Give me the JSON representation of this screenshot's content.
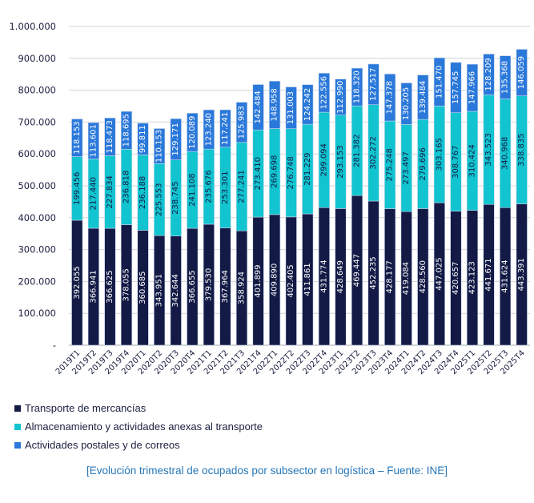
{
  "chart_data": {
    "type": "bar",
    "stacked": true,
    "title": "",
    "xlabel": "",
    "ylabel": "",
    "ylim": [
      0,
      1000000
    ],
    "yticks": [
      0,
      100000,
      200000,
      300000,
      400000,
      500000,
      600000,
      700000,
      800000,
      900000,
      1000000
    ],
    "ytick_labels": [
      "-",
      "100.000",
      "200.000",
      "300.000",
      "400.000",
      "500.000",
      "600.000",
      "700.000",
      "800.000",
      "900.000",
      "1.000.000"
    ],
    "grid": true,
    "legend_position": "bottom-left",
    "categories": [
      "2019T1",
      "2019T2",
      "2019T3",
      "2019T4",
      "2020T1",
      "2020T2",
      "2020T3",
      "2020T4",
      "2021T1",
      "2021T2",
      "2021T3",
      "2021T4",
      "2022T1",
      "2022T2",
      "2022T3",
      "2022T4",
      "2023T1",
      "2023T2",
      "2023T3",
      "2023T4",
      "2024T1",
      "2024T2",
      "2024T3",
      "2024T4",
      "2025T1",
      "2025T2",
      "2025T3",
      "2025T4"
    ],
    "series": [
      {
        "name": "Transporte de mercancías",
        "color": "#131a45",
        "label_color": "#ffffff",
        "values": [
          392055,
          366941,
          366625,
          378055,
          360685,
          343951,
          342644,
          366655,
          379530,
          367964,
          358924,
          401899,
          409890,
          402405,
          411861,
          431774,
          428649,
          469447,
          452235,
          428177,
          419084,
          428560,
          447025,
          420657,
          423123,
          441671,
          431624,
          443391
        ]
      },
      {
        "name": "Almacenamiento y actividades anexas al transporte",
        "color": "#11c4cf",
        "label_color": "#131a45",
        "values": [
          199456,
          217440,
          227834,
          236818,
          236188,
          225553,
          238745,
          241108,
          235676,
          253301,
          277241,
          273410,
          269698,
          276748,
          281229,
          299094,
          293153,
          281382,
          302272,
          275248,
          273497,
          279696,
          303165,
          308767,
          310424,
          343523,
          340968,
          338835
        ]
      },
      {
        "name": "Actividades postales y de correos",
        "color": "#2a78da",
        "label_color": "#ffffff",
        "values": [
          118153,
          113601,
          118473,
          118695,
          99811,
          110153,
          129171,
          120089,
          123240,
          117241,
          125983,
          142484,
          148958,
          131003,
          124242,
          122556,
          112990,
          118320,
          127517,
          147378,
          130205,
          139484,
          151470,
          157745,
          147966,
          128209,
          135368,
          146059
        ]
      }
    ]
  },
  "caption": "[Evolución trimestral de ocupados por subsector en logística – Fuente: INE]"
}
